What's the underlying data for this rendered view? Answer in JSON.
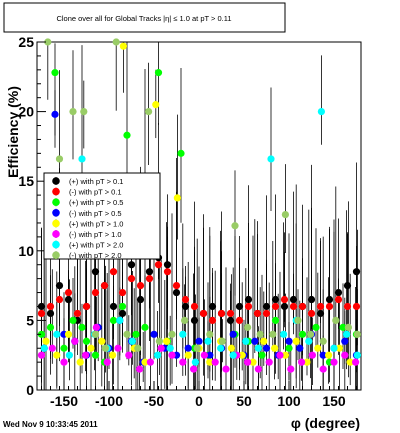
{
  "chart_data": {
    "type": "scatter",
    "title": "Clone  over all for Global Tracks |η| ≤ 1.0 at pT > 0.11",
    "xlabel": "φ (degree)",
    "ylabel": "Efficiency (%)",
    "xlim": [
      -180,
      180
    ],
    "ylim": [
      0,
      25
    ],
    "xticks": [
      -150,
      -100,
      -50,
      0,
      50,
      100,
      150
    ],
    "yticks": [
      0,
      5,
      10,
      15,
      20,
      25
    ],
    "legend_position": "left-center",
    "grid": false,
    "colors": {
      "black": "#000000",
      "red": "#ff0000",
      "green": "#00ff00",
      "blue": "#0000ff",
      "yellow": "#ffff00",
      "magenta": "#ff00ff",
      "cyan": "#00ffff",
      "olive": "#99cc66"
    },
    "series": [
      {
        "name": "(+) with pT > 0.1",
        "color": "#000000",
        "x": [
          -175,
          -165,
          -155,
          -145,
          -135,
          -125,
          -115,
          -105,
          -95,
          -85,
          -75,
          -65,
          -55,
          -45,
          -35,
          -25,
          -15,
          -5,
          5,
          15,
          25,
          35,
          45,
          55,
          65,
          75,
          85,
          95,
          105,
          115,
          125,
          135,
          145,
          155,
          165,
          175
        ],
        "y": [
          6.0,
          5.5,
          7.5,
          6.5,
          5.0,
          6.0,
          8.5,
          7.5,
          6.0,
          5.5,
          9.0,
          6.5,
          8.5,
          9.5,
          9.0,
          7.0,
          6.0,
          5.0,
          5.5,
          6.0,
          5.5,
          5.0,
          6.0,
          6.5,
          5.5,
          6.0,
          6.5,
          6.0,
          6.5,
          6.0,
          6.5,
          5.5,
          6.5,
          7.0,
          7.5,
          8.5
        ]
      },
      {
        "name": "(-) with pT > 0.1",
        "color": "#ff0000",
        "x": [
          -175,
          -165,
          -155,
          -145,
          -135,
          -125,
          -115,
          -105,
          -95,
          -85,
          -75,
          -65,
          -55,
          -45,
          -35,
          -25,
          -15,
          -5,
          5,
          15,
          25,
          35,
          45,
          55,
          65,
          75,
          85,
          95,
          105,
          115,
          125,
          135,
          145,
          155,
          165,
          175
        ],
        "y": [
          5.5,
          6.0,
          6.5,
          7.0,
          5.5,
          6.0,
          7.0,
          7.5,
          8.5,
          7.0,
          8.0,
          7.5,
          8.0,
          9.0,
          8.5,
          7.5,
          6.5,
          6.0,
          5.5,
          5.0,
          5.5,
          5.5,
          5.0,
          6.0,
          5.5,
          5.5,
          6.0,
          6.5,
          6.0,
          6.0,
          5.5,
          6.0,
          6.0,
          6.5,
          6.0,
          6.0
        ]
      },
      {
        "name": "(+) with pT > 0.5",
        "color": "#00ff00",
        "x": [
          -175,
          -165,
          -160,
          -150,
          -140,
          -130,
          -125,
          -115,
          -105,
          -95,
          -85,
          -80,
          -70,
          -60,
          -45,
          -35,
          -20,
          -5,
          10,
          25,
          40,
          55,
          70,
          85,
          100,
          115,
          130,
          145,
          160,
          175
        ],
        "y": [
          4.0,
          4.5,
          22.8,
          3.0,
          5.0,
          4.5,
          3.5,
          2.5,
          2.0,
          5.0,
          6.0,
          18.3,
          4.0,
          4.5,
          22.8,
          3.5,
          17.0,
          3.0,
          2.5,
          3.0,
          4.0,
          3.5,
          2.5,
          5.0,
          3.0,
          4.0,
          4.5,
          2.0,
          4.5,
          4.0
        ]
      },
      {
        "name": "(-) with pT > 0.5",
        "color": "#0000ff",
        "x": [
          -172,
          -160,
          -150,
          -138,
          -125,
          -112,
          -100,
          -88,
          -75,
          -62,
          -50,
          -38,
          -25,
          -12,
          0,
          12,
          25,
          38,
          50,
          62,
          75,
          88,
          100,
          112,
          125,
          138,
          150,
          162,
          175
        ],
        "y": [
          3.0,
          19.8,
          4.0,
          3.5,
          2.5,
          4.5,
          3.0,
          5.0,
          3.5,
          2.0,
          4.0,
          3.0,
          2.5,
          3.0,
          3.5,
          2.5,
          3.0,
          4.0,
          2.5,
          3.5,
          3.0,
          2.5,
          3.5,
          3.0,
          4.0,
          2.5,
          3.0,
          3.5,
          2.5
        ]
      },
      {
        "name": "(+) with pT > 1.0",
        "color": "#ffff00",
        "x": [
          -170,
          -158,
          -145,
          -132,
          -120,
          -108,
          -96,
          -84,
          -72,
          -60,
          -48,
          -36,
          -24,
          -12,
          0,
          12,
          24,
          36,
          48,
          60,
          72,
          84,
          96,
          108,
          120,
          132,
          144,
          156,
          168
        ],
        "y": [
          3.5,
          2.5,
          4.0,
          2.0,
          3.0,
          3.5,
          2.5,
          24.7,
          3.0,
          2.0,
          20.5,
          3.5,
          13.8,
          2.5,
          3.0,
          2.0,
          3.5,
          3.0,
          2.5,
          2.0,
          3.5,
          3.0,
          2.5,
          3.5,
          2.0,
          3.0,
          2.5,
          3.0,
          2.0
        ]
      },
      {
        "name": "(-) with pT > 1.0",
        "color": "#ff00ff",
        "x": [
          -175,
          -163,
          -150,
          -138,
          -126,
          -114,
          -102,
          -90,
          -78,
          -66,
          -54,
          -42,
          -30,
          -18,
          -6,
          6,
          18,
          30,
          42,
          54,
          66,
          78,
          90,
          102,
          114,
          126,
          138,
          150,
          162,
          174
        ],
        "y": [
          2.5,
          3.0,
          2.0,
          3.5,
          2.5,
          4.5,
          2.0,
          3.0,
          2.5,
          1.5,
          2.0,
          3.0,
          2.5,
          2.0,
          1.5,
          2.5,
          2.0,
          1.5,
          2.5,
          2.0,
          1.5,
          2.0,
          2.5,
          1.5,
          2.0,
          2.5,
          1.5,
          2.0,
          2.5,
          2.0
        ]
      },
      {
        "name": "(+) with pT > 2.0",
        "color": "#00ffff",
        "x": [
          -172,
          -158,
          -144,
          -130,
          -116,
          -102,
          -88,
          -74,
          -60,
          -46,
          -32,
          -18,
          -4,
          10,
          24,
          38,
          52,
          66,
          80,
          94,
          108,
          122,
          136,
          150,
          164,
          176
        ],
        "y": [
          3.0,
          4.0,
          2.5,
          16.6,
          4.0,
          3.0,
          5.0,
          3.5,
          14.9,
          2.5,
          3.0,
          4.0,
          2.0,
          3.5,
          3.0,
          2.5,
          3.5,
          3.0,
          16.6,
          4.0,
          5.0,
          3.5,
          20.0,
          3.0,
          4.0,
          2.5
        ]
      },
      {
        "name": "(-) with pT > 2.0",
        "color": "#99cc66",
        "x": [
          -168,
          -155,
          -140,
          -128,
          -115,
          -104,
          -92,
          -80,
          -68,
          -56,
          -44,
          -30,
          -16,
          -2,
          12,
          26,
          40,
          54,
          68,
          82,
          96,
          110,
          124,
          138,
          152,
          166,
          176
        ],
        "y": [
          25.0,
          16.6,
          20.0,
          20.0,
          4.0,
          3.0,
          25.0,
          4.0,
          3.0,
          20.0,
          3.5,
          4.0,
          5.0,
          3.0,
          4.0,
          3.5,
          11.8,
          4.5,
          4.0,
          4.0,
          12.6,
          5.0,
          4.0,
          3.5,
          5.0,
          4.5,
          4.0
        ]
      }
    ]
  },
  "footer": {
    "timestamp": "Wed Nov  9 10:33:45 2011"
  }
}
